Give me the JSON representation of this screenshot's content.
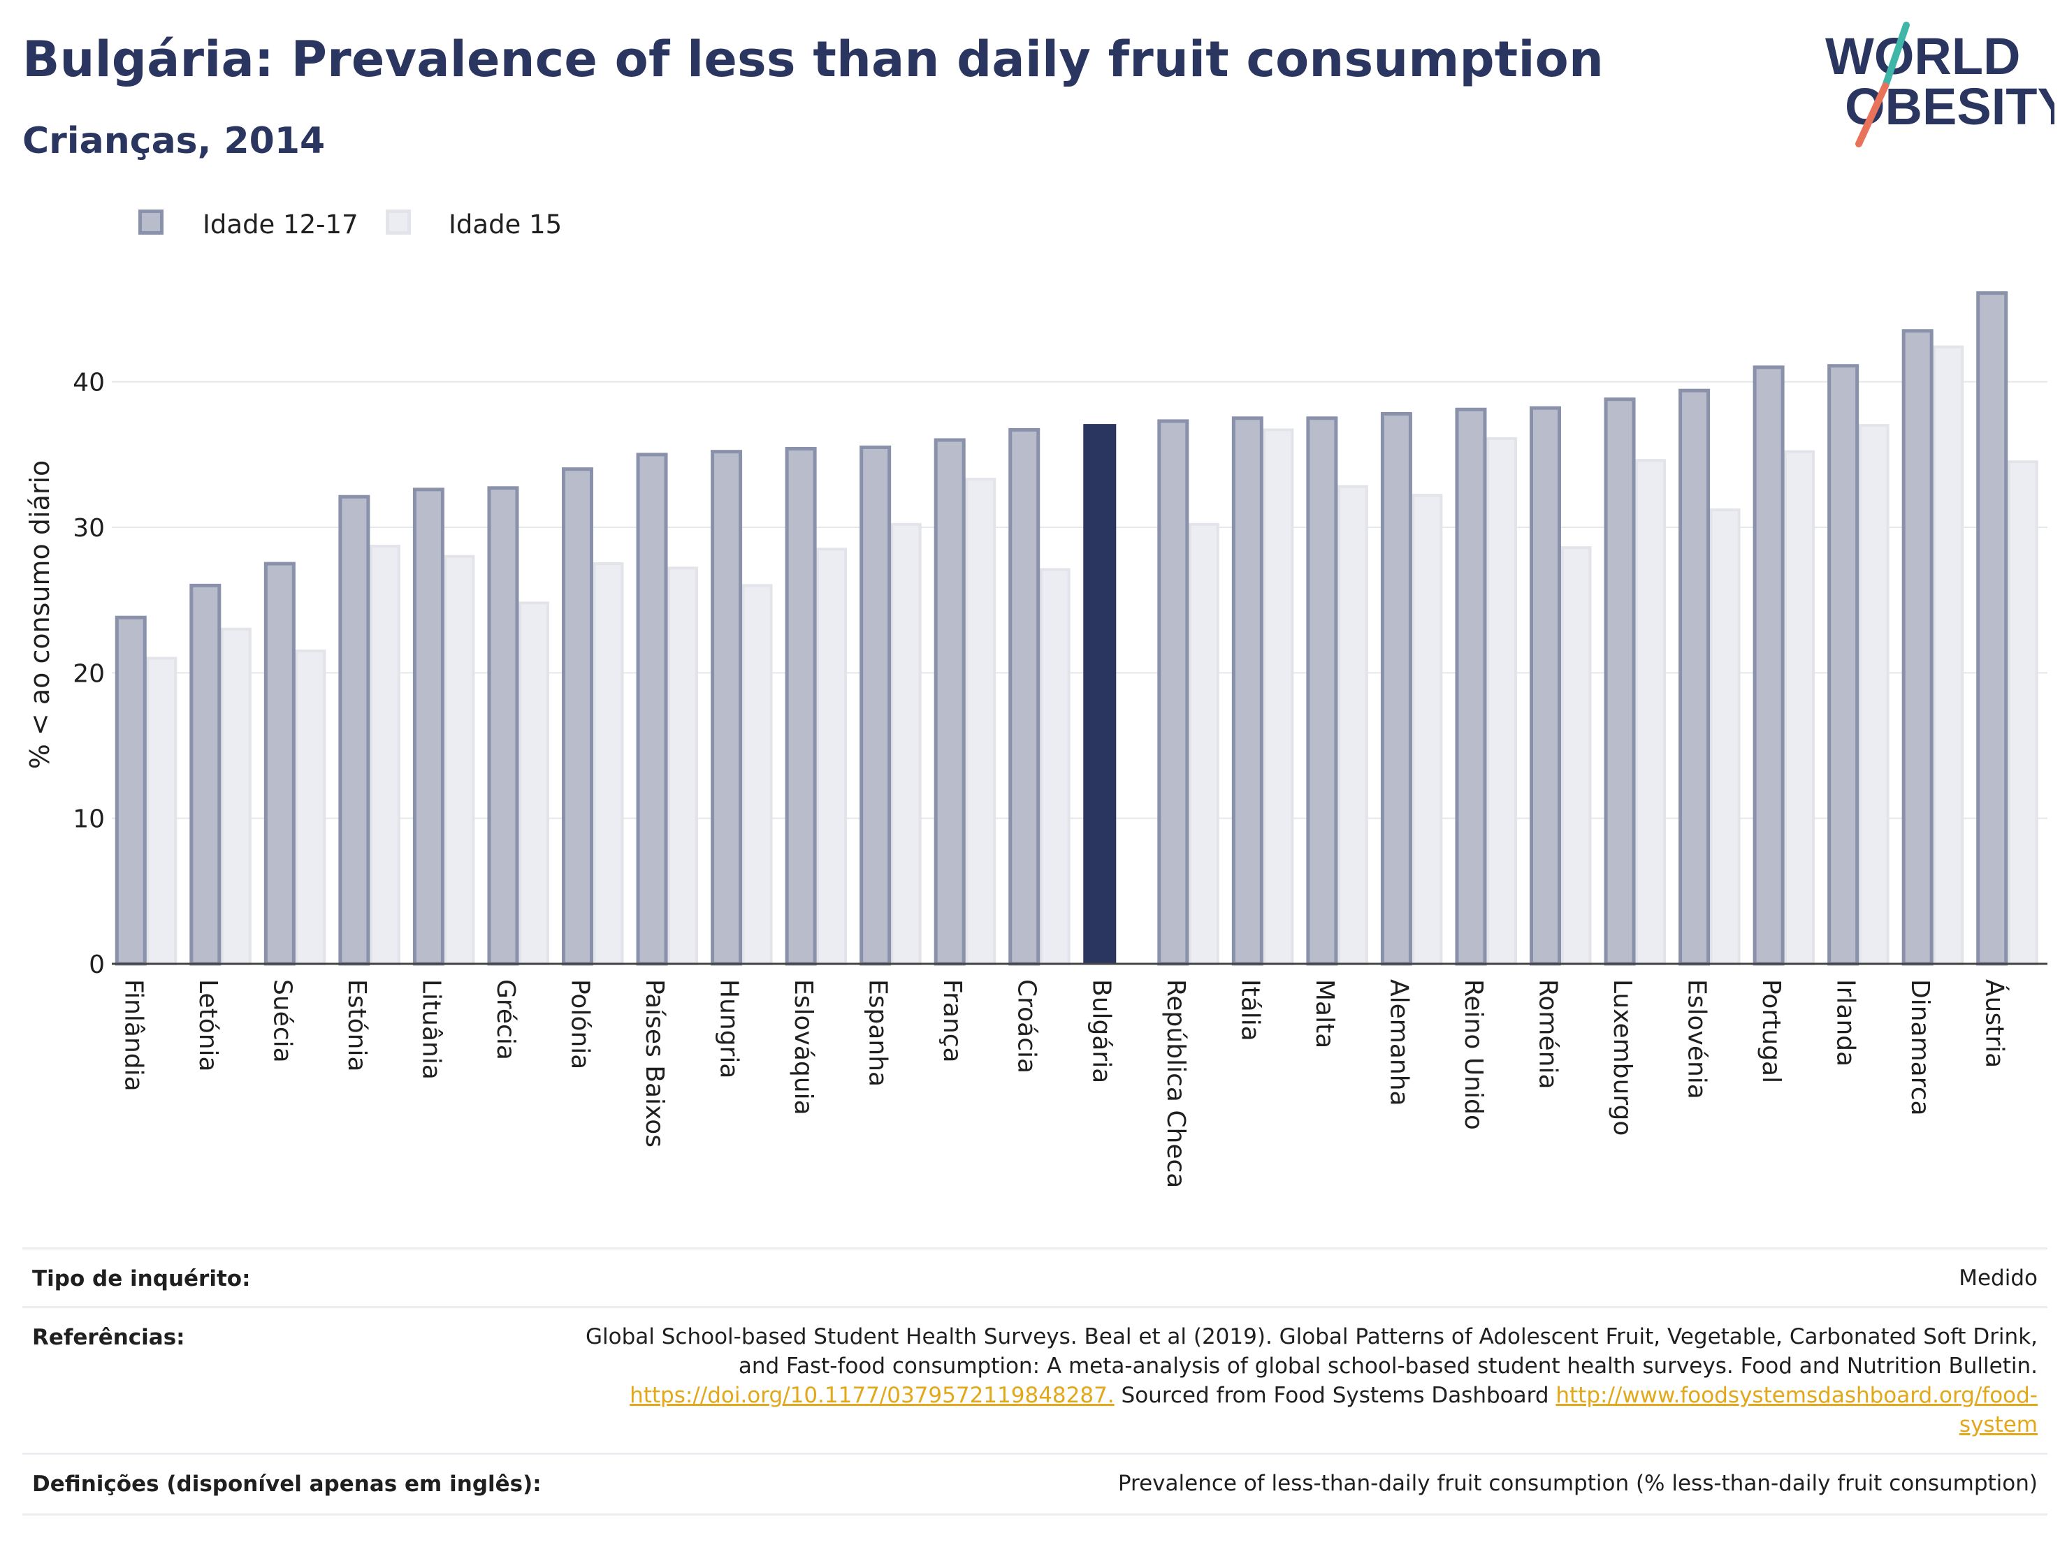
{
  "header": {
    "title": "Bulgária: Prevalence of less than daily fruit consumption",
    "subtitle": "Crianças, 2014"
  },
  "logo": {
    "line1": "WORLD",
    "line2": "OBESITY"
  },
  "colors": {
    "series1": "#b8bccb",
    "series1_border": "#8a91aa",
    "series2": "#ecedf2",
    "series2_border": "#e2e4ea",
    "highlight": "#2a3560",
    "title": "#2a3560",
    "logo_teal": "#3fb6a8",
    "logo_coral": "#e8735a",
    "link": "#e3a81a"
  },
  "legend": [
    {
      "label": "Idade 12-17"
    },
    {
      "label": "Idade 15"
    }
  ],
  "chart_data": {
    "type": "bar",
    "ylabel": "% < ao consumo diário",
    "xlabel": "",
    "ylim": [
      0,
      48
    ],
    "yticks": [
      0,
      10,
      20,
      30,
      40
    ],
    "grid": true,
    "legend_position": "top-left",
    "highlight_category": "Bulgária",
    "categories": [
      "Finlândia",
      "Letónia",
      "Suécia",
      "Estónia",
      "Lituânia",
      "Grécia",
      "Polónia",
      "Países Baixos",
      "Hungria",
      "Eslováquia",
      "Espanha",
      "França",
      "Croácia",
      "Bulgária",
      "República Checa",
      "Itália",
      "Malta",
      "Alemanha",
      "Reino Unido",
      "Roménia",
      "Luxemburgo",
      "Eslovénia",
      "Portugal",
      "Irlanda",
      "Dinamarca",
      "Áustria"
    ],
    "series": [
      {
        "name": "Idade 12-17",
        "values": [
          23.8,
          26.0,
          27.5,
          32.1,
          32.6,
          32.7,
          34.0,
          35.0,
          35.2,
          35.4,
          35.5,
          36.0,
          36.7,
          37.1,
          37.3,
          37.5,
          37.5,
          37.8,
          38.1,
          38.2,
          38.8,
          39.4,
          41.0,
          41.1,
          43.5,
          46.1
        ]
      },
      {
        "name": "Idade 15",
        "values": [
          21.0,
          23.0,
          21.5,
          28.7,
          28.0,
          24.8,
          27.5,
          27.2,
          26.0,
          28.5,
          30.2,
          33.3,
          27.1,
          null,
          30.2,
          36.7,
          32.8,
          32.2,
          36.1,
          28.6,
          34.6,
          31.2,
          35.2,
          37.0,
          42.4,
          34.5
        ]
      }
    ]
  },
  "footer": {
    "survey_type_label": "Tipo de inquérito:",
    "survey_type_value": "Medido",
    "references_label": "Referências:",
    "references_line1": "Global School-based Student Health Surveys. Beal et al (2019). Global Patterns of Adolescent Fruit, Vegetable, Carbonated Soft Drink,",
    "references_line2": "and Fast-food consumption: A meta-analysis of global school-based student health surveys. Food and Nutrition Bulletin.",
    "references_link1": "https://doi.org/10.1177/0379572119848287.",
    "references_mid": " Sourced from Food Systems Dashboard ",
    "references_link2a": "http://www.foodsystemsdashboard.org/food-",
    "references_link2b": "system",
    "definitions_label": "Definições (disponível apenas em inglês):",
    "definitions_value": "Prevalence of less-than-daily fruit consumption (% less-than-daily fruit consumption)"
  }
}
